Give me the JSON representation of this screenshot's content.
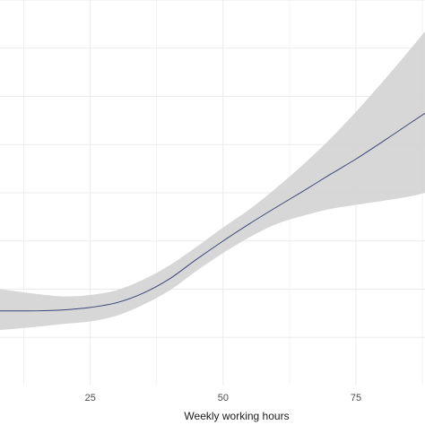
{
  "chart_data": {
    "type": "line",
    "title": "",
    "xlabel": "Weekly working hours",
    "ylabel": "",
    "xlim": [
      8,
      88
    ],
    "ylim": [
      0,
      8
    ],
    "x_ticks": [
      25,
      50,
      75
    ],
    "x_tick_labels": [
      "25",
      "50",
      "75"
    ],
    "y_gridlines": [
      1,
      2,
      3,
      4,
      5,
      6,
      7,
      8
    ],
    "grid": true,
    "legend": "none",
    "colors": {
      "line": "#3c4677",
      "band": "#d3d3d3",
      "grid": "#ebebeb"
    },
    "series": [
      {
        "x": [
          8,
          15,
          20,
          25,
          30,
          35,
          40,
          45,
          50,
          55,
          60,
          65,
          70,
          75,
          80,
          85,
          88
        ],
        "y": [
          1.55,
          1.55,
          1.57,
          1.62,
          1.72,
          1.92,
          2.22,
          2.62,
          3.0,
          3.36,
          3.7,
          4.03,
          4.37,
          4.7,
          5.06,
          5.43,
          5.65
        ],
        "lower": [
          1.15,
          1.22,
          1.28,
          1.33,
          1.45,
          1.68,
          1.98,
          2.38,
          2.75,
          3.08,
          3.35,
          3.52,
          3.66,
          3.75,
          3.83,
          3.92,
          4.0
        ],
        "upper": [
          2.0,
          1.9,
          1.85,
          1.88,
          1.98,
          2.2,
          2.5,
          2.88,
          3.28,
          3.66,
          4.1,
          4.58,
          5.1,
          5.68,
          6.3,
          6.95,
          7.35
        ]
      }
    ]
  }
}
